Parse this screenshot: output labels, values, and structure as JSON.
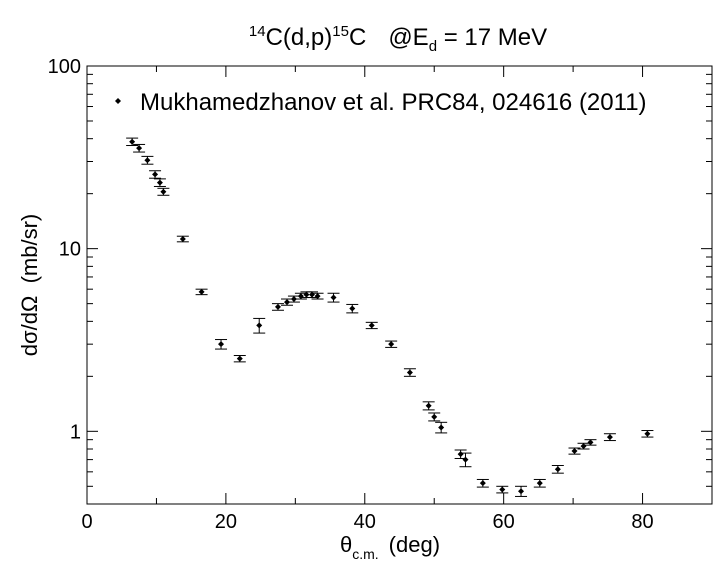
{
  "chart_data": {
    "type": "scatter",
    "title": {
      "sup1": "14",
      "part1": "C(d,p)",
      "sup2": "15",
      "part2": "C",
      "part3": "@E",
      "sub": "d",
      "part4": " = 17 MeV"
    },
    "xlabel": {
      "main": "θ",
      "sub": "c.m.",
      "unit": "(deg)"
    },
    "ylabel": "dσ/dΩ  (mb/sr)",
    "xlim": [
      0,
      90
    ],
    "ylim": [
      0.4,
      100
    ],
    "yscale": "log",
    "x_ticks": [
      "0",
      "20",
      "40",
      "60",
      "80"
    ],
    "y_ticks": [
      "1",
      "10",
      "100"
    ],
    "grid": false,
    "legend_position": "top",
    "series": [
      {
        "name": "Mukhamedzhanov et al. PRC84, 024616 (2011)",
        "color": "#000000",
        "points": [
          {
            "x": 6.5,
            "y": 38.5,
            "err": 1.8
          },
          {
            "x": 7.5,
            "y": 35.5,
            "err": 1.7
          },
          {
            "x": 8.7,
            "y": 30.5,
            "err": 1.5
          },
          {
            "x": 9.8,
            "y": 25.5,
            "err": 1.2
          },
          {
            "x": 10.5,
            "y": 23.0,
            "err": 1.1
          },
          {
            "x": 11.0,
            "y": 20.5,
            "err": 0.9
          },
          {
            "x": 13.8,
            "y": 11.3,
            "err": 0.4
          },
          {
            "x": 16.5,
            "y": 5.8,
            "err": 0.2
          },
          {
            "x": 19.3,
            "y": 3.0,
            "err": 0.18
          },
          {
            "x": 22.0,
            "y": 2.5,
            "err": 0.1
          },
          {
            "x": 24.8,
            "y": 3.8,
            "err": 0.35
          },
          {
            "x": 27.5,
            "y": 4.8,
            "err": 0.2
          },
          {
            "x": 28.8,
            "y": 5.1,
            "err": 0.2
          },
          {
            "x": 29.8,
            "y": 5.3,
            "err": 0.2
          },
          {
            "x": 30.8,
            "y": 5.5,
            "err": 0.2
          },
          {
            "x": 31.6,
            "y": 5.6,
            "err": 0.2
          },
          {
            "x": 32.4,
            "y": 5.6,
            "err": 0.2
          },
          {
            "x": 33.2,
            "y": 5.5,
            "err": 0.2
          },
          {
            "x": 35.5,
            "y": 5.4,
            "err": 0.3
          },
          {
            "x": 38.2,
            "y": 4.7,
            "err": 0.25
          },
          {
            "x": 41.0,
            "y": 3.8,
            "err": 0.15
          },
          {
            "x": 43.8,
            "y": 3.0,
            "err": 0.12
          },
          {
            "x": 46.5,
            "y": 2.1,
            "err": 0.1
          },
          {
            "x": 49.2,
            "y": 1.38,
            "err": 0.07
          },
          {
            "x": 50.0,
            "y": 1.2,
            "err": 0.06
          },
          {
            "x": 51.0,
            "y": 1.05,
            "err": 0.07
          },
          {
            "x": 53.8,
            "y": 0.75,
            "err": 0.04
          },
          {
            "x": 54.5,
            "y": 0.7,
            "err": 0.06
          },
          {
            "x": 57.0,
            "y": 0.52,
            "err": 0.025
          },
          {
            "x": 59.8,
            "y": 0.48,
            "err": 0.02
          },
          {
            "x": 62.5,
            "y": 0.47,
            "err": 0.03
          },
          {
            "x": 65.2,
            "y": 0.52,
            "err": 0.025
          },
          {
            "x": 67.8,
            "y": 0.62,
            "err": 0.03
          },
          {
            "x": 70.2,
            "y": 0.78,
            "err": 0.03
          },
          {
            "x": 71.5,
            "y": 0.83,
            "err": 0.03
          },
          {
            "x": 72.5,
            "y": 0.87,
            "err": 0.03
          },
          {
            "x": 75.3,
            "y": 0.93,
            "err": 0.04
          },
          {
            "x": 80.7,
            "y": 0.97,
            "err": 0.04
          }
        ]
      }
    ]
  }
}
